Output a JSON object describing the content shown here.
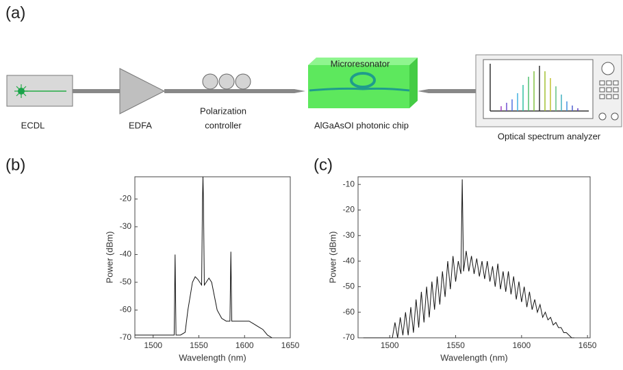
{
  "diagram": {
    "panel_label": "(a)",
    "components": {
      "laser": "ECDL",
      "amplifier": "EDFA",
      "polarization": [
        "Polarization",
        "controller"
      ],
      "resonator": "Microresonator",
      "chip": "AlGaAsOI photonic chip",
      "analyzer": "Optical spectrum analyzer"
    }
  },
  "chart_data": [
    {
      "type": "line",
      "panel_label": "(b)",
      "x_label": "Wavelength (nm)",
      "y_label": "Power (dBm)",
      "color": "#111111",
      "xlim": [
        1480,
        1650
      ],
      "ylim": [
        -70,
        -12
      ],
      "xticks": [
        1500,
        1550,
        1600,
        1650
      ],
      "yticks": [
        -70,
        -60,
        -50,
        -40,
        -30,
        -20
      ],
      "x": [
        1480,
        1490,
        1500,
        1510,
        1520,
        1523,
        1524,
        1525,
        1530,
        1535,
        1538,
        1540,
        1543,
        1546,
        1549,
        1551,
        1553,
        1554,
        1554.5,
        1555,
        1556,
        1558,
        1561,
        1564,
        1567,
        1570,
        1575,
        1580,
        1584,
        1585,
        1586,
        1590,
        1600,
        1605,
        1610,
        1615,
        1620,
        1625,
        1630
      ],
      "values": [
        -69,
        -69,
        -69,
        -69,
        -69,
        -69,
        -40,
        -69,
        -69,
        -68,
        -60,
        -56,
        -50,
        -48,
        -49,
        -50,
        -51,
        -20,
        -12,
        -20,
        -51,
        -50,
        -48.5,
        -50,
        -55,
        -60,
        -63,
        -64,
        -64,
        -39,
        -64,
        -64,
        -64,
        -64,
        -65,
        -66,
        -67,
        -69,
        -70
      ]
    },
    {
      "type": "line",
      "panel_label": "(c)",
      "x_label": "Wavelength (nm)",
      "y_label": "Power (dBm)",
      "color": "#111111",
      "xlim": [
        1476,
        1652
      ],
      "ylim": [
        -70,
        -7
      ],
      "xticks": [
        1500,
        1550,
        1600,
        1650
      ],
      "yticks": [
        -70,
        -60,
        -50,
        -40,
        -30,
        -20,
        -10
      ],
      "x": [
        1480,
        1502,
        1504,
        1506,
        1508,
        1510,
        1512,
        1514,
        1516,
        1518,
        1520,
        1522,
        1524,
        1526,
        1528,
        1530,
        1532,
        1534,
        1536,
        1538,
        1540,
        1542,
        1544,
        1546,
        1548,
        1550,
        1552,
        1554,
        1555,
        1556,
        1558,
        1560,
        1562,
        1564,
        1566,
        1568,
        1570,
        1572,
        1574,
        1576,
        1578,
        1580,
        1582,
        1584,
        1586,
        1588,
        1590,
        1592,
        1594,
        1596,
        1598,
        1600,
        1602,
        1604,
        1606,
        1608,
        1610,
        1612,
        1614,
        1616,
        1618,
        1620,
        1622,
        1624,
        1626,
        1628,
        1630,
        1632,
        1634,
        1636,
        1638,
        1640
      ],
      "values": [
        -70,
        -70,
        -64,
        -70,
        -62,
        -69,
        -60,
        -69,
        -58,
        -68,
        -55,
        -66,
        -52,
        -64,
        -50,
        -62,
        -48,
        -59,
        -46,
        -57,
        -44,
        -54,
        -40,
        -51,
        -38,
        -48,
        -40,
        -45,
        -8,
        -44,
        -36,
        -44,
        -38,
        -45,
        -39,
        -46,
        -40,
        -47,
        -40,
        -48,
        -42,
        -50,
        -41,
        -51,
        -44,
        -52,
        -44,
        -53,
        -46,
        -55,
        -48,
        -56,
        -50,
        -58,
        -52,
        -59,
        -55,
        -60,
        -57,
        -62,
        -60,
        -63,
        -62,
        -65,
        -64,
        -66,
        -66,
        -68,
        -68,
        -69,
        -70,
        -70
      ]
    }
  ]
}
